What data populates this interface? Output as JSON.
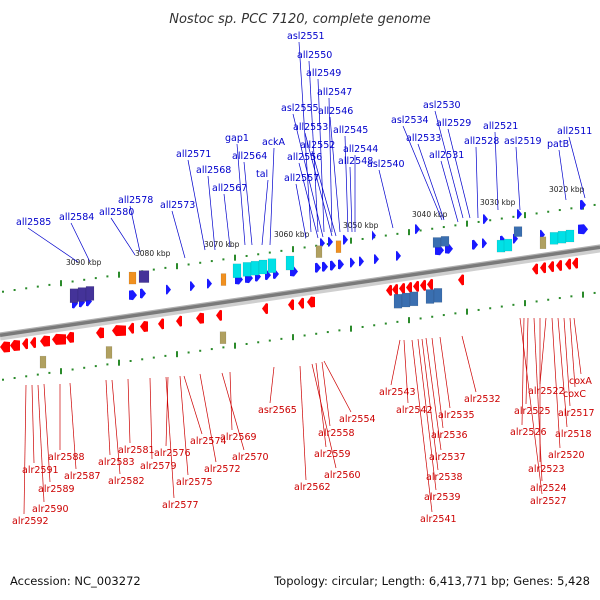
{
  "title": "Nostoc sp. PCC 7120, complete genome",
  "footer": {
    "accession": "Accession: NC_003272",
    "summary": "Topology: circular; Length: 6,413,771 bp; Genes: 5,428"
  },
  "colors": {
    "forward": "#0000cc",
    "reverse": "#cc0000",
    "forward_gene": "#1a1aff",
    "reverse_gene": "#ff0000",
    "backbone": "#8a8a8a",
    "tick": "#2a8a2a",
    "cyan": "#00e0e6",
    "orange": "#f09020",
    "purple": "#443399",
    "steel": "#3a6fb0",
    "khaki": "#b0a060"
  },
  "scale_labels": [
    "3090 kbp",
    "3080 kbp",
    "3070 kbp",
    "3060 kbp",
    "3050 kbp",
    "3040 kbp",
    "3030 kbp",
    "3020 kbp"
  ],
  "forward_genes": [
    "all2585",
    "all2584",
    "all2580",
    "all2578",
    "all2573",
    "all2571",
    "all2568",
    "all2567",
    "gap1",
    "all2564",
    "tal",
    "ackA",
    "all2557",
    "all2556",
    "asl2555",
    "all2553",
    "all2552",
    "asl2551",
    "all2550",
    "all2549",
    "all2547",
    "all2546",
    "all2545",
    "all2544",
    "all2548",
    "asl2540",
    "asl2534",
    "all2533",
    "asl2530",
    "all2531",
    "all2529",
    "all2528",
    "all2521",
    "asl2519",
    "patB",
    "all2511"
  ],
  "reverse_genes": [
    "alr2592",
    "alr2591",
    "alr2590",
    "alr2589",
    "alr2588",
    "alr2587",
    "alr2583",
    "alr2582",
    "alr2581",
    "alr2579",
    "alr2577",
    "alr2576",
    "alr2575",
    "alr2574",
    "alr2572",
    "alr2570",
    "alr2569",
    "asr2565",
    "alr2562",
    "alr2560",
    "alr2559",
    "alr2558",
    "alr2554",
    "alr2543",
    "alr2542",
    "alr2541",
    "alr2539",
    "alr2538",
    "alr2537",
    "alr2536",
    "alr2535",
    "alr2532",
    "alr2527",
    "alr2526",
    "alr2525",
    "alr2524",
    "alr2523",
    "alr2522",
    "alr2520",
    "alr2518",
    "alr2517",
    "coxC",
    "coxA"
  ]
}
